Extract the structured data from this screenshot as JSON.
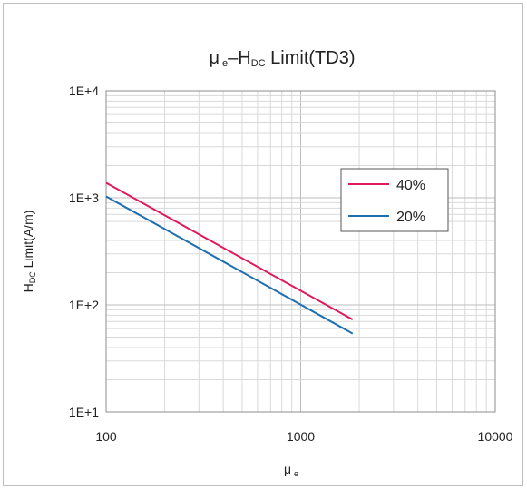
{
  "chart_data": {
    "type": "line",
    "title": {
      "main_prefix": "μ",
      "main_prefix_sub": "e",
      "dash": "–",
      "h": "H",
      "h_sub": "DC",
      "main_suffix": " Limit(TD3)"
    },
    "xlabel": {
      "main": "μ",
      "sub": "e"
    },
    "ylabel": {
      "main": "H",
      "sub": "DC",
      "rest": " Limit(A/m)"
    },
    "x_scale": "log",
    "y_scale": "log",
    "xlim": [
      100,
      10000
    ],
    "ylim": [
      10,
      10000
    ],
    "x_ticks": [
      {
        "value": 100,
        "label": "100"
      },
      {
        "value": 1000,
        "label": "1000"
      },
      {
        "value": 10000,
        "label": "10000"
      }
    ],
    "y_ticks": [
      {
        "value": 10,
        "label": "1E+1"
      },
      {
        "value": 100,
        "label": "1E+2"
      },
      {
        "value": 1000,
        "label": "1E+3"
      },
      {
        "value": 10000,
        "label": "1E+4"
      }
    ],
    "grid": true,
    "legend_position": "upper-right",
    "series": [
      {
        "name": "40%",
        "color": "#e0195a",
        "x": [
          100,
          1850
        ],
        "y": [
          1380,
          73
        ]
      },
      {
        "name": "20%",
        "color": "#1e6fb0",
        "x": [
          100,
          1850
        ],
        "y": [
          1030,
          54
        ]
      }
    ]
  }
}
